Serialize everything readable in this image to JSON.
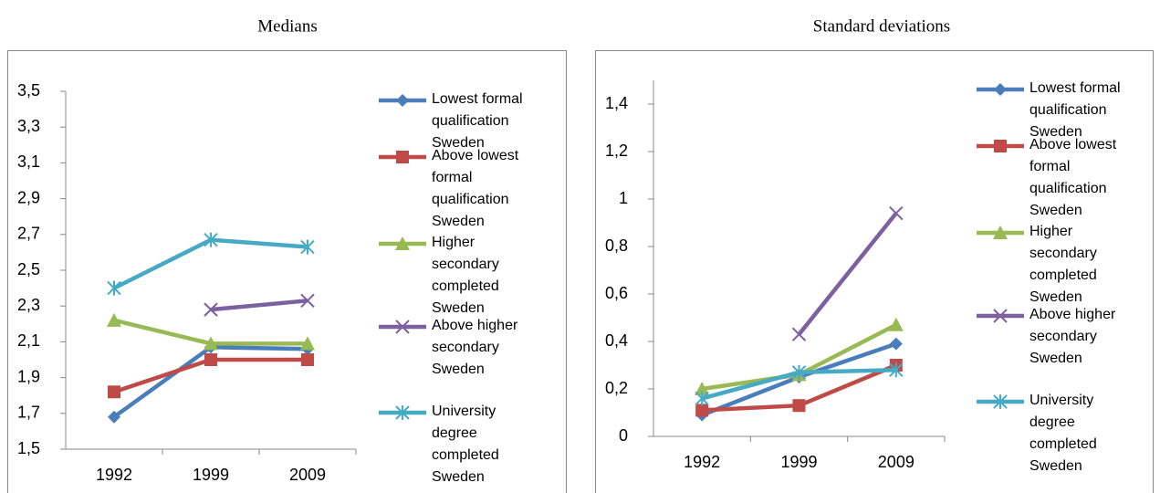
{
  "chart_data": [
    {
      "type": "line",
      "title": "Medians",
      "categories": [
        "1992",
        "1999",
        "2009"
      ],
      "ylim": [
        1.5,
        3.5
      ],
      "yticks": [
        {
          "value": 1.5,
          "label": "1,5"
        },
        {
          "value": 1.7,
          "label": "1,7"
        },
        {
          "value": 1.9,
          "label": "1,9"
        },
        {
          "value": 2.1,
          "label": "2,1"
        },
        {
          "value": 2.3,
          "label": "2,3"
        },
        {
          "value": 2.5,
          "label": "2,5"
        },
        {
          "value": 2.7,
          "label": "2,7"
        },
        {
          "value": 2.9,
          "label": "2,9"
        },
        {
          "value": 3.1,
          "label": "3,1"
        },
        {
          "value": 3.3,
          "label": "3,3"
        },
        {
          "value": 3.5,
          "label": "3,5"
        }
      ],
      "legend": "right",
      "series": [
        {
          "name": "Lowest formal qualification Sweden",
          "color": "#4a7ebb",
          "marker": "diamond",
          "values": [
            1.68,
            2.07,
            2.06
          ]
        },
        {
          "name": "Above lowest formal qualification Sweden",
          "color": "#be4b48",
          "marker": "square",
          "values": [
            1.82,
            2.0,
            2.0
          ]
        },
        {
          "name": "Higher secondary completed Sweden",
          "color": "#98b954",
          "marker": "triangle",
          "values": [
            2.22,
            2.09,
            2.09
          ]
        },
        {
          "name": "Above higher secondary Sweden",
          "color": "#7d60a0",
          "marker": "x",
          "values": [
            null,
            2.28,
            2.33
          ]
        },
        {
          "name": "University degree completed Sweden",
          "color": "#46aac5",
          "marker": "star",
          "values": [
            2.4,
            2.67,
            2.63
          ]
        }
      ]
    },
    {
      "type": "line",
      "title": "Standard deviations",
      "categories": [
        "1992",
        "1999",
        "2009"
      ],
      "ylim": [
        0,
        1.5
      ],
      "yticks": [
        0,
        {
          "value": 0.2,
          "label": "0,2"
        },
        {
          "value": 0.4,
          "label": "0,4"
        },
        {
          "value": 0.6,
          "label": "0,6"
        },
        {
          "value": 0.8,
          "label": "0,8"
        },
        1,
        {
          "value": 1.2,
          "label": "1,2"
        },
        {
          "value": 1.4,
          "label": "1,4"
        }
      ],
      "legend": "right",
      "series": [
        {
          "name": "Lowest formal qualification Sweden",
          "color": "#4a7ebb",
          "marker": "diamond",
          "values": [
            0.09,
            0.25,
            0.39
          ]
        },
        {
          "name": "Above lowest formal qualification Sweden",
          "color": "#be4b48",
          "marker": "square",
          "values": [
            0.11,
            0.13,
            0.3
          ]
        },
        {
          "name": "Higher secondary completed Sweden",
          "color": "#98b954",
          "marker": "triangle",
          "values": [
            0.2,
            0.26,
            0.47
          ]
        },
        {
          "name": "Above higher secondary Sweden",
          "color": "#7d60a0",
          "marker": "x",
          "values": [
            null,
            0.43,
            0.94
          ]
        },
        {
          "name": "University degree completed Sweden",
          "color": "#46aac5",
          "marker": "star",
          "values": [
            0.16,
            0.27,
            0.28
          ]
        }
      ]
    }
  ]
}
